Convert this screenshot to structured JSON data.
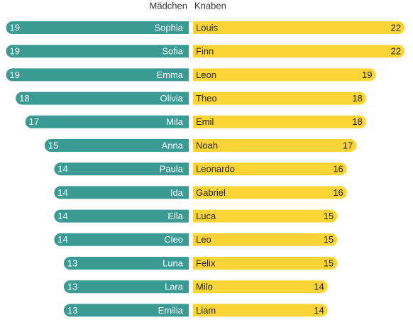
{
  "chart_data": [
    {
      "type": "bar",
      "title": "Mädchen",
      "color": "#3a9a94",
      "side": "left",
      "categories": [
        "Sophia",
        "Sofia",
        "Emma",
        "Olivia",
        "Mila",
        "Anna",
        "Paula",
        "Ida",
        "Ella",
        "Cleo",
        "Luna",
        "Lara",
        "Emilia"
      ],
      "values": [
        19,
        19,
        19,
        18,
        17,
        15,
        14,
        14,
        14,
        14,
        13,
        13,
        13
      ]
    },
    {
      "type": "bar",
      "title": "Knaben",
      "color": "#fbd537",
      "side": "right",
      "categories": [
        "Louis",
        "Finn",
        "Leon",
        "Theo",
        "Emil",
        "Noah",
        "Leonardo",
        "Gabriel",
        "Luca",
        "Leo",
        "Felix",
        "Milo",
        "Liam"
      ],
      "values": [
        22,
        22,
        19,
        18,
        18,
        17,
        16,
        16,
        15,
        15,
        15,
        14,
        14
      ]
    }
  ]
}
